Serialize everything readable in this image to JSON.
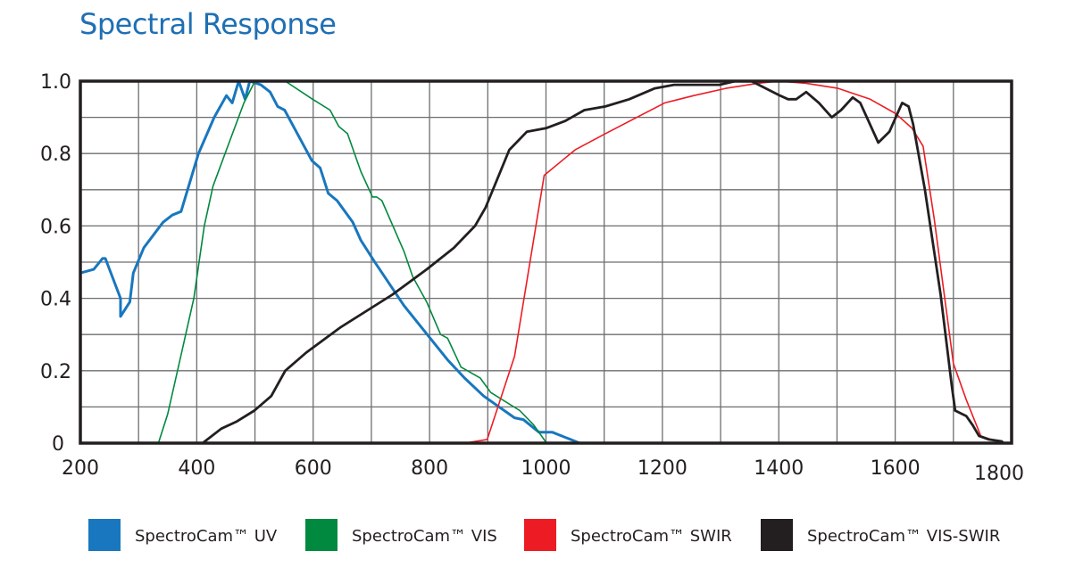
{
  "chart_data": {
    "type": "line",
    "title": "Spectral Response",
    "xlabel": "",
    "ylabel": "",
    "xlim": [
      200,
      1800
    ],
    "ylim": [
      0,
      1.0
    ],
    "grid": true,
    "legend_placement": "bottom",
    "x_ticks": [
      "200",
      "400",
      "600",
      "800",
      "1000",
      "1200",
      "1400",
      "1600",
      "1800"
    ],
    "y_ticks": [
      "0",
      "0.2",
      "0.4",
      "0.6",
      "0.8",
      "1.0"
    ],
    "series": [
      {
        "name": "SpectroCam™ UV",
        "color": "#1877be",
        "points": [
          [
            200,
            0.47
          ],
          [
            223,
            0.48
          ],
          [
            238,
            0.51
          ],
          [
            243,
            0.51
          ],
          [
            269,
            0.4
          ],
          [
            269,
            0.35
          ],
          [
            285,
            0.39
          ],
          [
            291,
            0.47
          ],
          [
            309,
            0.54
          ],
          [
            342,
            0.61
          ],
          [
            358,
            0.63
          ],
          [
            373,
            0.64
          ],
          [
            403,
            0.8
          ],
          [
            430,
            0.9
          ],
          [
            451,
            0.96
          ],
          [
            461,
            0.94
          ],
          [
            472,
            1.0
          ],
          [
            483,
            0.95
          ],
          [
            491,
            1.0
          ],
          [
            510,
            0.99
          ],
          [
            526,
            0.97
          ],
          [
            539,
            0.93
          ],
          [
            551,
            0.92
          ],
          [
            598,
            0.78
          ],
          [
            612,
            0.76
          ],
          [
            626,
            0.69
          ],
          [
            641,
            0.67
          ],
          [
            668,
            0.61
          ],
          [
            682,
            0.56
          ],
          [
            706,
            0.5
          ],
          [
            756,
            0.38
          ],
          [
            831,
            0.23
          ],
          [
            860,
            0.18
          ],
          [
            893,
            0.13
          ],
          [
            946,
            0.07
          ],
          [
            961,
            0.065
          ],
          [
            988,
            0.03
          ],
          [
            1011,
            0.03
          ],
          [
            1058,
            0.0
          ]
        ]
      },
      {
        "name": "SpectroCam™ VIS",
        "color": "#00893f",
        "points": [
          [
            334,
            0.0
          ],
          [
            350,
            0.08
          ],
          [
            374,
            0.25
          ],
          [
            395,
            0.4
          ],
          [
            413,
            0.6
          ],
          [
            428,
            0.71
          ],
          [
            451,
            0.81
          ],
          [
            481,
            0.94
          ],
          [
            500,
            1.0
          ],
          [
            522,
            1.0
          ],
          [
            552,
            1.0
          ],
          [
            599,
            0.95
          ],
          [
            629,
            0.92
          ],
          [
            644,
            0.875
          ],
          [
            659,
            0.855
          ],
          [
            682,
            0.75
          ],
          [
            702,
            0.68
          ],
          [
            709,
            0.68
          ],
          [
            718,
            0.67
          ],
          [
            756,
            0.53
          ],
          [
            771,
            0.46
          ],
          [
            795,
            0.39
          ],
          [
            819,
            0.3
          ],
          [
            831,
            0.29
          ],
          [
            854,
            0.21
          ],
          [
            887,
            0.18
          ],
          [
            905,
            0.14
          ],
          [
            955,
            0.09
          ],
          [
            979,
            0.05
          ],
          [
            1001,
            0.0
          ]
        ]
      },
      {
        "name": "SpectroCam™ SWIR",
        "color": "#ed1c24",
        "points": [
          [
            860,
            0.0
          ],
          [
            899,
            0.01
          ],
          [
            946,
            0.24
          ],
          [
            997,
            0.74
          ],
          [
            1050,
            0.81
          ],
          [
            1102,
            0.855
          ],
          [
            1204,
            0.94
          ],
          [
            1254,
            0.96
          ],
          [
            1309,
            0.98
          ],
          [
            1364,
            0.994
          ],
          [
            1400,
            1.0
          ],
          [
            1447,
            0.994
          ],
          [
            1502,
            0.98
          ],
          [
            1557,
            0.95
          ],
          [
            1601,
            0.91
          ],
          [
            1629,
            0.87
          ],
          [
            1648,
            0.82
          ],
          [
            1667,
            0.62
          ],
          [
            1700,
            0.22
          ],
          [
            1722,
            0.12
          ],
          [
            1747,
            0.02
          ],
          [
            1783,
            0.0
          ]
        ]
      },
      {
        "name": "SpectroCam™ VIS-SWIR",
        "color": "#231f20",
        "points": [
          [
            410,
            0.0
          ],
          [
            442,
            0.04
          ],
          [
            469,
            0.06
          ],
          [
            499,
            0.09
          ],
          [
            528,
            0.13
          ],
          [
            552,
            0.2
          ],
          [
            588,
            0.25
          ],
          [
            647,
            0.32
          ],
          [
            736,
            0.41
          ],
          [
            795,
            0.48
          ],
          [
            842,
            0.54
          ],
          [
            878,
            0.6
          ],
          [
            896,
            0.65
          ],
          [
            919,
            0.74
          ],
          [
            937,
            0.81
          ],
          [
            967,
            0.86
          ],
          [
            1000,
            0.87
          ],
          [
            1033,
            0.89
          ],
          [
            1066,
            0.92
          ],
          [
            1102,
            0.93
          ],
          [
            1143,
            0.95
          ],
          [
            1187,
            0.98
          ],
          [
            1220,
            0.99
          ],
          [
            1259,
            0.99
          ],
          [
            1298,
            0.99
          ],
          [
            1325,
            1.0
          ],
          [
            1353,
            1.0
          ],
          [
            1402,
            0.96
          ],
          [
            1416,
            0.95
          ],
          [
            1430,
            0.95
          ],
          [
            1447,
            0.97
          ],
          [
            1469,
            0.94
          ],
          [
            1491,
            0.9
          ],
          [
            1507,
            0.92
          ],
          [
            1527,
            0.955
          ],
          [
            1540,
            0.94
          ],
          [
            1571,
            0.83
          ],
          [
            1590,
            0.86
          ],
          [
            1612,
            0.94
          ],
          [
            1623,
            0.93
          ],
          [
            1631,
            0.88
          ],
          [
            1651,
            0.7
          ],
          [
            1678,
            0.41
          ],
          [
            1697,
            0.16
          ],
          [
            1703,
            0.09
          ],
          [
            1722,
            0.075
          ],
          [
            1733,
            0.05
          ],
          [
            1744,
            0.02
          ],
          [
            1761,
            0.01
          ],
          [
            1783,
            0.005
          ],
          [
            1786,
            0.0
          ]
        ]
      }
    ]
  }
}
